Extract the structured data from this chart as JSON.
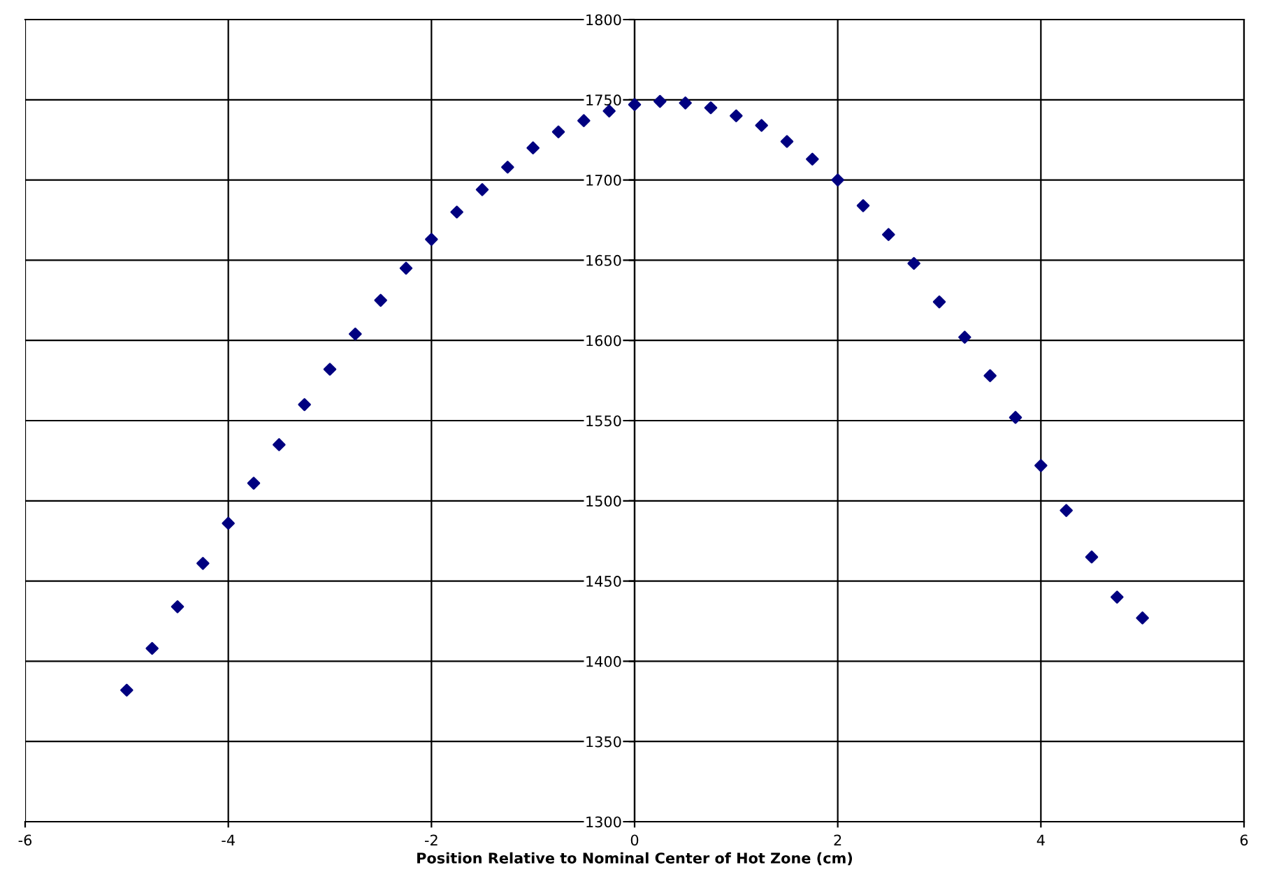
{
  "chart_data": {
    "type": "scatter",
    "xlabel": "Position Relative to Nominal Center of Hot Zone (cm)",
    "x": [
      -5,
      -4.75,
      -4.5,
      -4.25,
      -4,
      -3.75,
      -3.5,
      -3.25,
      -3,
      -2.75,
      -2.5,
      -2.25,
      -2,
      -1.75,
      -1.5,
      -1.25,
      -1,
      -0.75,
      -0.5,
      -0.25,
      0,
      0.25,
      0.5,
      0.75,
      1,
      1.25,
      1.5,
      1.75,
      2,
      2.25,
      2.5,
      2.75,
      3,
      3.25,
      3.5,
      3.75,
      4,
      4.25,
      4.5,
      4.75,
      5
    ],
    "series": [
      {
        "color": "#000080",
        "values": [
          1382,
          1408,
          1434,
          1461,
          1486,
          1511,
          1535,
          1560,
          1582,
          1604,
          1625,
          1645,
          1663,
          1680,
          1694,
          1708,
          1720,
          1730,
          1737,
          1743,
          1747,
          1749,
          1748,
          1745,
          1740,
          1734,
          1724,
          1713,
          1700,
          1684,
          1666,
          1648,
          1624,
          1602,
          1578,
          1552,
          1522,
          1494,
          1465,
          1440,
          1427
        ]
      }
    ],
    "xlim": [
      -6,
      6
    ],
    "xticks": [
      -6,
      -4,
      -2,
      0,
      2,
      4,
      6
    ],
    "ylim": [
      1300,
      1800
    ],
    "yticks": [
      1300,
      1350,
      1400,
      1450,
      1500,
      1550,
      1600,
      1650,
      1700,
      1750,
      1800
    ],
    "grid": true,
    "marker": "diamond",
    "legend": false
  }
}
